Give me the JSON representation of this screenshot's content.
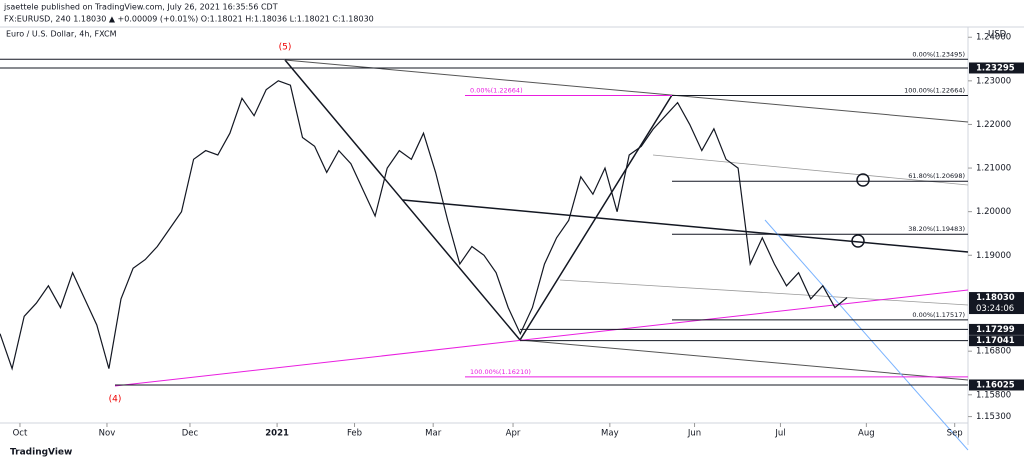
{
  "header": {
    "line1": "jsaettele published on TradingView.com, July 26, 2021 16:35:56 CDT",
    "line2": "FX:EURUSD, 240  1.18030 ▲ +0.00009 (+0.01%) O:1.18021 H:1.18036 L:1.18021 C:1.18030"
  },
  "footer": "TradingView",
  "chart_data": {
    "type": "line",
    "title": "Euro / U.S. Dollar, 4h, FXCM",
    "axis_unit": "USD",
    "series": [
      {
        "name": "EURUSD",
        "color": "#131722",
        "values": [
          1.172,
          1.164,
          1.176,
          1.179,
          1.183,
          1.178,
          1.186,
          1.18,
          1.174,
          1.164,
          1.18,
          1.187,
          1.189,
          1.192,
          1.196,
          1.2,
          1.212,
          1.214,
          1.213,
          1.218,
          1.226,
          1.222,
          1.228,
          1.23,
          1.229,
          1.217,
          1.215,
          1.209,
          1.214,
          1.211,
          1.205,
          1.199,
          1.21,
          1.214,
          1.212,
          1.218,
          1.209,
          1.198,
          1.188,
          1.192,
          1.19,
          1.186,
          1.178,
          1.172,
          1.178,
          1.188,
          1.194,
          1.198,
          1.208,
          1.204,
          1.21,
          1.2,
          1.213,
          1.215,
          1.219,
          1.222,
          1.225,
          1.22,
          1.214,
          1.219,
          1.212,
          1.21,
          1.188,
          1.194,
          1.188,
          1.183,
          1.186,
          1.18,
          1.183,
          1.178,
          1.1803
        ]
      }
    ],
    "xlim": [
      0,
      80
    ],
    "xticks": [
      {
        "value": 1.65,
        "label": "Oct"
      },
      {
        "value": 8.84,
        "label": "Nov"
      },
      {
        "value": 15.7,
        "label": "Dec"
      },
      {
        "value": 22.9,
        "label": "2021"
      },
      {
        "value": 29.3,
        "label": "Feb"
      },
      {
        "value": 35.8,
        "label": "Mar"
      },
      {
        "value": 42.4,
        "label": "Apr"
      },
      {
        "value": 50.4,
        "label": "May"
      },
      {
        "value": 57.4,
        "label": "Jun"
      },
      {
        "value": 64.5,
        "label": "Jul"
      },
      {
        "value": 71.6,
        "label": "Aug"
      },
      {
        "value": 78.9,
        "label": "Sep"
      }
    ],
    "ylim": [
      1.15153,
      1.24212
    ],
    "yticks": [
      {
        "value": 1.24,
        "label": "1.24000"
      },
      {
        "value": 1.23,
        "label": "1.23000"
      },
      {
        "value": 1.22,
        "label": "1.22000"
      },
      {
        "value": 1.21,
        "label": "1.21000"
      },
      {
        "value": 1.2,
        "label": "1.20000"
      },
      {
        "value": 1.19,
        "label": "1.19000"
      },
      {
        "value": 1.168,
        "label": "1.16800"
      },
      {
        "value": 1.158,
        "label": "1.15800"
      },
      {
        "value": 1.153,
        "label": "1.15300"
      }
    ],
    "price_labels": [
      {
        "value": 1.23295,
        "label": "1.23295"
      },
      {
        "value": 1.1803,
        "label": "1.18030",
        "countdown": "03:24:06"
      },
      {
        "value": 1.17299,
        "label": "1.17299"
      },
      {
        "value": 1.17041,
        "label": "1.17041"
      },
      {
        "value": 1.16025,
        "label": "1.16025"
      }
    ],
    "levels": [
      {
        "value": 1.23495,
        "label": "0.00%(1.23495)",
        "color": "#131722"
      },
      {
        "value": 1.22664,
        "label": "100.00%(1.22664)",
        "color": "#131722"
      },
      {
        "value": 1.22664,
        "label": "0.00%(1.22664)",
        "color": "#e91ee0"
      },
      {
        "value": 1.20698,
        "label": "61.80%(1.20698)",
        "color": "#131722"
      },
      {
        "value": 1.19483,
        "label": "38.20%(1.19483)",
        "color": "#131722"
      },
      {
        "value": 1.17517,
        "label": "0.00%(1.17517)",
        "color": "#131722"
      },
      {
        "value": 1.1621,
        "label": "100.00%(1.16210)",
        "color": "#e91ee0"
      }
    ],
    "wave_labels": [
      "(5)",
      "(4)"
    ]
  }
}
